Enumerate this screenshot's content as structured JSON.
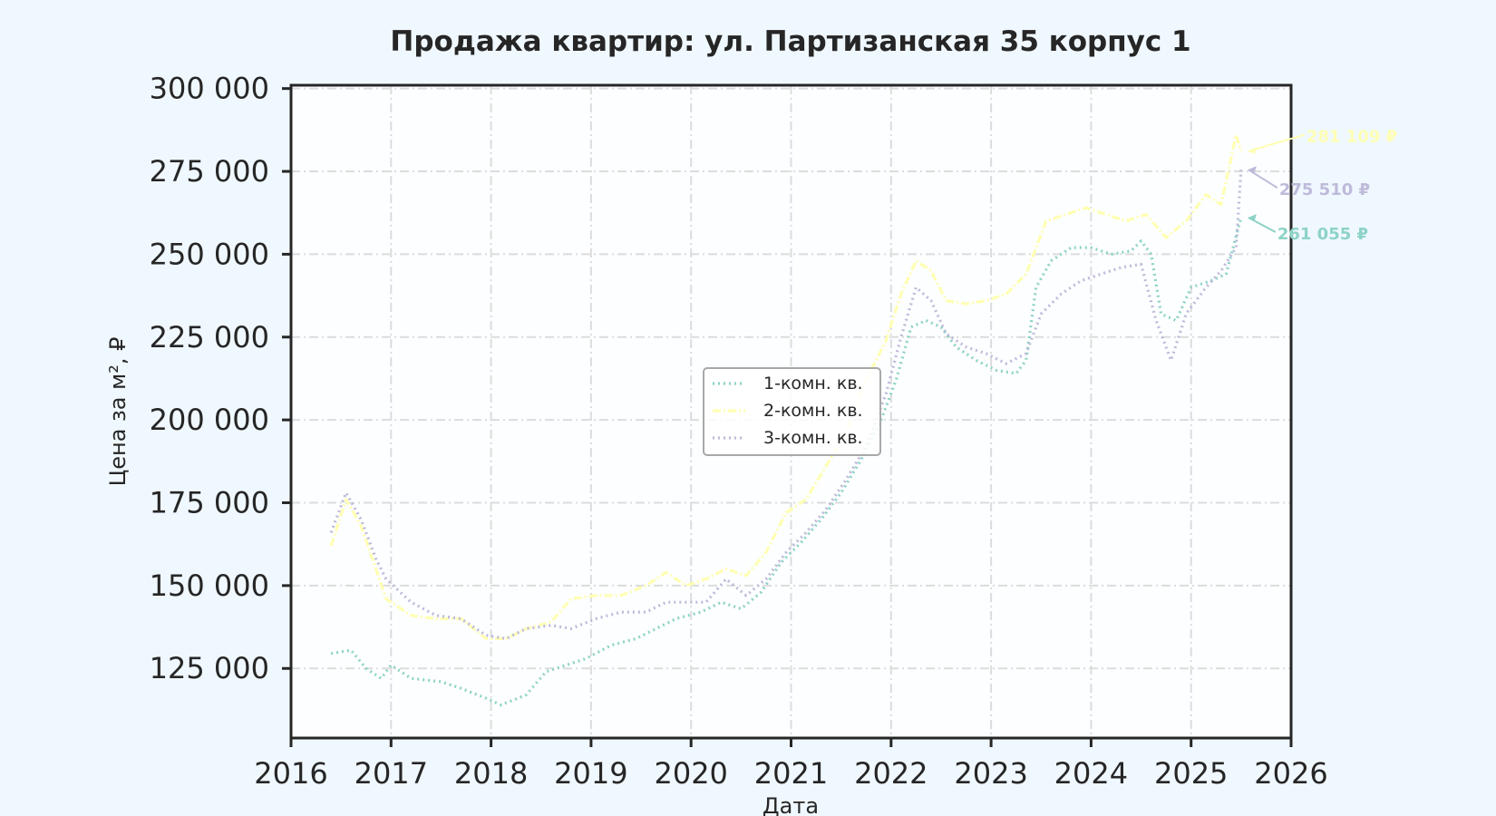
{
  "chart_data": {
    "type": "line",
    "title": "Продажа квартир: ул. Партизанская 35 корпус 1",
    "xlabel": "Дата",
    "ylabel": "Цена за м², ₽",
    "xlim": [
      2016,
      2026
    ],
    "ylim": [
      104000,
      301000
    ],
    "x_ticks": [
      "2016",
      "2017",
      "2018",
      "2019",
      "2020",
      "2021",
      "2022",
      "2023",
      "2024",
      "2025",
      "2026"
    ],
    "y_ticks": [
      {
        "value": 125000,
        "label": "125 000"
      },
      {
        "value": 150000,
        "label": "150 000"
      },
      {
        "value": 175000,
        "label": "175 000"
      },
      {
        "value": 200000,
        "label": "200 000"
      },
      {
        "value": 225000,
        "label": "225 000"
      },
      {
        "value": 250000,
        "label": "250 000"
      },
      {
        "value": 275000,
        "label": "275 000"
      },
      {
        "value": 300000,
        "label": "300 000"
      }
    ],
    "grid": true,
    "legend_position": "center",
    "series": [
      {
        "name": "1-комн. кв.",
        "color": "#8dd3c7",
        "style": "dotted",
        "end_label": "261 055 ₽",
        "points": [
          [
            2016.4,
            129500
          ],
          [
            2016.6,
            130500
          ],
          [
            2016.75,
            125000
          ],
          [
            2016.9,
            122000
          ],
          [
            2017.0,
            126000
          ],
          [
            2017.2,
            122000
          ],
          [
            2017.5,
            121000
          ],
          [
            2017.7,
            119000
          ],
          [
            2017.95,
            116000
          ],
          [
            2018.1,
            114000
          ],
          [
            2018.35,
            117000
          ],
          [
            2018.55,
            124000
          ],
          [
            2018.75,
            126000
          ],
          [
            2018.95,
            128000
          ],
          [
            2019.2,
            132000
          ],
          [
            2019.45,
            134000
          ],
          [
            2019.65,
            137000
          ],
          [
            2019.85,
            140000
          ],
          [
            2020.1,
            142000
          ],
          [
            2020.3,
            145000
          ],
          [
            2020.5,
            143000
          ],
          [
            2020.7,
            148000
          ],
          [
            2020.9,
            157000
          ],
          [
            2021.1,
            163000
          ],
          [
            2021.3,
            170000
          ],
          [
            2021.5,
            178000
          ],
          [
            2021.7,
            188000
          ],
          [
            2021.9,
            200000
          ],
          [
            2022.05,
            212000
          ],
          [
            2022.2,
            228000
          ],
          [
            2022.35,
            230000
          ],
          [
            2022.5,
            228000
          ],
          [
            2022.65,
            222000
          ],
          [
            2022.85,
            218000
          ],
          [
            2023.05,
            215000
          ],
          [
            2023.25,
            214000
          ],
          [
            2023.35,
            218000
          ],
          [
            2023.45,
            240000
          ],
          [
            2023.6,
            248000
          ],
          [
            2023.8,
            252000
          ],
          [
            2024.0,
            252000
          ],
          [
            2024.2,
            250000
          ],
          [
            2024.4,
            251000
          ],
          [
            2024.5,
            254000
          ],
          [
            2024.6,
            250000
          ],
          [
            2024.7,
            232000
          ],
          [
            2024.85,
            230000
          ],
          [
            2025.0,
            240000
          ],
          [
            2025.2,
            242000
          ],
          [
            2025.35,
            244000
          ],
          [
            2025.5,
            261055
          ]
        ]
      },
      {
        "name": "2-комн. кв.",
        "color": "#ffffb3",
        "style": "dashdot",
        "end_label": "281 109 ₽",
        "points": [
          [
            2016.4,
            162000
          ],
          [
            2016.55,
            176000
          ],
          [
            2016.7,
            168000
          ],
          [
            2016.85,
            155000
          ],
          [
            2016.95,
            146000
          ],
          [
            2017.2,
            141000
          ],
          [
            2017.45,
            140000
          ],
          [
            2017.7,
            140000
          ],
          [
            2017.95,
            134000
          ],
          [
            2018.15,
            134000
          ],
          [
            2018.35,
            137000
          ],
          [
            2018.6,
            139000
          ],
          [
            2018.8,
            146000
          ],
          [
            2019.05,
            147000
          ],
          [
            2019.3,
            147000
          ],
          [
            2019.55,
            150000
          ],
          [
            2019.75,
            154000
          ],
          [
            2019.95,
            150000
          ],
          [
            2020.15,
            152000
          ],
          [
            2020.35,
            155000
          ],
          [
            2020.55,
            153000
          ],
          [
            2020.75,
            160000
          ],
          [
            2020.95,
            172000
          ],
          [
            2021.15,
            176000
          ],
          [
            2021.35,
            186000
          ],
          [
            2021.55,
            196000
          ],
          [
            2021.75,
            212000
          ],
          [
            2021.95,
            224000
          ],
          [
            2022.1,
            238000
          ],
          [
            2022.25,
            248000
          ],
          [
            2022.4,
            245000
          ],
          [
            2022.55,
            236000
          ],
          [
            2022.75,
            235000
          ],
          [
            2022.95,
            236000
          ],
          [
            2023.15,
            238000
          ],
          [
            2023.35,
            244000
          ],
          [
            2023.55,
            260000
          ],
          [
            2023.75,
            262000
          ],
          [
            2023.95,
            264000
          ],
          [
            2024.15,
            262000
          ],
          [
            2024.35,
            260000
          ],
          [
            2024.55,
            262000
          ],
          [
            2024.75,
            255000
          ],
          [
            2024.95,
            260000
          ],
          [
            2025.15,
            268000
          ],
          [
            2025.3,
            265000
          ],
          [
            2025.45,
            286000
          ],
          [
            2025.5,
            281109
          ]
        ]
      },
      {
        "name": "3-комн. кв.",
        "color": "#bebada",
        "style": "dotted",
        "end_label": "275 510 ₽",
        "points": [
          [
            2016.4,
            166000
          ],
          [
            2016.55,
            178000
          ],
          [
            2016.7,
            170000
          ],
          [
            2016.85,
            158000
          ],
          [
            2016.95,
            152000
          ],
          [
            2017.2,
            145000
          ],
          [
            2017.45,
            141000
          ],
          [
            2017.7,
            140000
          ],
          [
            2017.95,
            135000
          ],
          [
            2018.15,
            134000
          ],
          [
            2018.35,
            137000
          ],
          [
            2018.6,
            138000
          ],
          [
            2018.8,
            137000
          ],
          [
            2019.05,
            140000
          ],
          [
            2019.3,
            142000
          ],
          [
            2019.55,
            142000
          ],
          [
            2019.75,
            145000
          ],
          [
            2019.95,
            145000
          ],
          [
            2020.15,
            145000
          ],
          [
            2020.35,
            152000
          ],
          [
            2020.55,
            147000
          ],
          [
            2020.75,
            152000
          ],
          [
            2020.95,
            160000
          ],
          [
            2021.15,
            166000
          ],
          [
            2021.35,
            173000
          ],
          [
            2021.55,
            182000
          ],
          [
            2021.75,
            192000
          ],
          [
            2021.95,
            208000
          ],
          [
            2022.1,
            225000
          ],
          [
            2022.25,
            240000
          ],
          [
            2022.4,
            236000
          ],
          [
            2022.55,
            226000
          ],
          [
            2022.75,
            222000
          ],
          [
            2022.95,
            220000
          ],
          [
            2023.15,
            217000
          ],
          [
            2023.35,
            220000
          ],
          [
            2023.5,
            232000
          ],
          [
            2023.7,
            238000
          ],
          [
            2023.9,
            242000
          ],
          [
            2024.1,
            244000
          ],
          [
            2024.3,
            246000
          ],
          [
            2024.5,
            247000
          ],
          [
            2024.65,
            230000
          ],
          [
            2024.8,
            218000
          ],
          [
            2024.95,
            232000
          ],
          [
            2025.15,
            240000
          ],
          [
            2025.3,
            245000
          ],
          [
            2025.45,
            252000
          ],
          [
            2025.5,
            275510
          ]
        ]
      }
    ]
  }
}
